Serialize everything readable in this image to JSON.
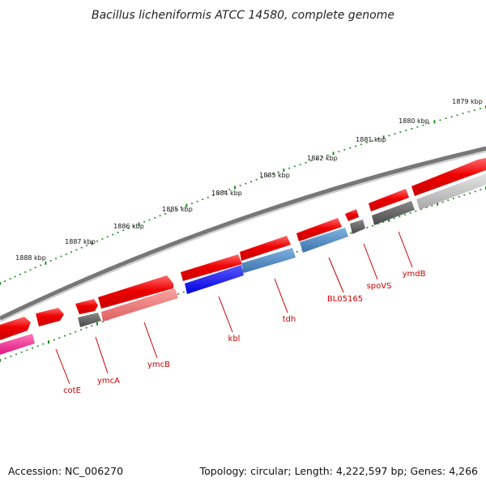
{
  "title": "Bacillus licheniformis ATCC 14580, complete genome",
  "footer": {
    "accession": "Accession: NC_006270",
    "summary": "Topology: circular; Length: 4,222,597 bp; Genes: 4,266"
  },
  "kbp_labels": [
    "1879 kbp",
    "1880 kbp",
    "1881 kbp",
    "1882 kbp",
    "1883 kbp",
    "1884 kbp",
    "1885 kbp",
    "1886 kbp",
    "1887 kbp",
    "1888 kbp"
  ],
  "gene_labels": [
    "cotE",
    "ymcA",
    "ymcB",
    "kbl",
    "tdh",
    "BL05165",
    "spoVS",
    "ymdB"
  ],
  "colors": {
    "backbone": "#777777",
    "tick": "#1f8a1f",
    "forward_gene": "#ee0000",
    "label": "#cc0000",
    "highlight_blue": "#0000ee",
    "steel_blue": "#4a86c0",
    "dark_gray": "#555555",
    "light_gray": "#bbbbbb",
    "pink": "#ee2288",
    "salmon": "#ee7777"
  }
}
